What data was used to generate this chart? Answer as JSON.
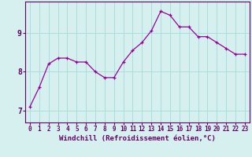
{
  "x": [
    0,
    1,
    2,
    3,
    4,
    5,
    6,
    7,
    8,
    9,
    10,
    11,
    12,
    13,
    14,
    15,
    16,
    17,
    18,
    19,
    20,
    21,
    22,
    23
  ],
  "y": [
    7.1,
    7.6,
    8.2,
    8.35,
    8.35,
    8.25,
    8.25,
    8.0,
    7.85,
    7.85,
    8.25,
    8.55,
    8.75,
    9.05,
    9.55,
    9.45,
    9.15,
    9.15,
    8.9,
    8.9,
    8.75,
    8.6,
    8.45,
    8.45
  ],
  "line_color": "#990099",
  "marker": "+",
  "bg_color": "#d6f0f0",
  "grid_color": "#aadddd",
  "axis_color": "#660066",
  "xlabel": "Windchill (Refroidissement éolien,°C)",
  "xlabel_fontsize": 6.5,
  "tick_fontsize": 5.5,
  "ytick_fontsize": 7,
  "ylabel_ticks": [
    7,
    8,
    9
  ],
  "xlim": [
    -0.5,
    23.5
  ],
  "ylim": [
    6.7,
    9.8
  ]
}
